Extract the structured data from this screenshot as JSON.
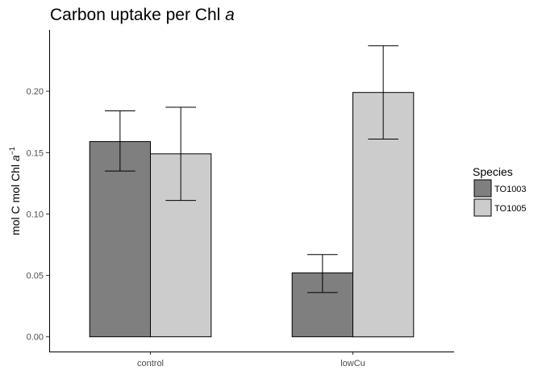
{
  "chart_data": {
    "type": "bar",
    "title_main": "Carbon uptake per Chl ",
    "title_italic": "a",
    "ylabel_main": "mol C mol Chl ",
    "ylabel_italic": "a",
    "ylabel_sup": "−1",
    "xlabel": "",
    "categories": [
      "control",
      "lowCu"
    ],
    "series": [
      {
        "name": "TO1003",
        "color": "#7f7f7f",
        "values": [
          0.159,
          0.052
        ],
        "err_low": [
          0.135,
          0.036
        ],
        "err_high": [
          0.184,
          0.067
        ]
      },
      {
        "name": "TO1005",
        "color": "#cccccc",
        "values": [
          0.149,
          0.199
        ],
        "err_low": [
          0.111,
          0.161
        ],
        "err_high": [
          0.187,
          0.237
        ]
      }
    ],
    "ylim": [
      -0.012,
      0.25
    ],
    "yticks": [
      0.0,
      0.05,
      0.1,
      0.15,
      0.2
    ],
    "ytick_labels": [
      "0.00",
      "0.05",
      "0.10",
      "0.15",
      "0.20"
    ],
    "grid": false,
    "legend": {
      "title": "Species",
      "position": "right"
    }
  }
}
